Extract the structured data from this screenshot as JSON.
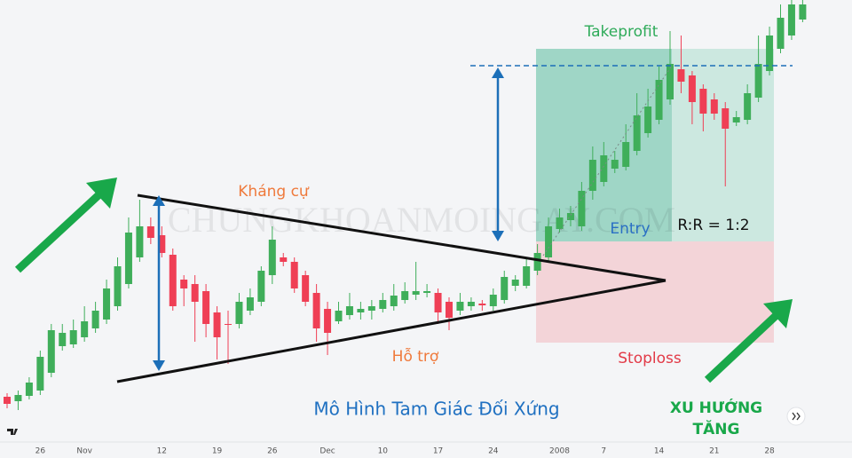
{
  "chart_data": {
    "type": "candlestick",
    "title": "Mô Hình Tam Giác Đối Xứng",
    "categories": [
      null,
      null,
      null,
      "26",
      null,
      null,
      null,
      "Nov",
      null,
      null,
      null,
      null,
      null,
      null,
      "12",
      null,
      null,
      null,
      null,
      "19",
      null,
      null,
      null,
      null,
      "26",
      null,
      null,
      null,
      null,
      "Dec",
      null,
      null,
      null,
      null,
      "10",
      null,
      null,
      null,
      null,
      "17",
      null,
      null,
      null,
      null,
      "24",
      null,
      null,
      null,
      null,
      null,
      "2008",
      null,
      null,
      null,
      "7",
      null,
      null,
      null,
      null,
      "14",
      null,
      null,
      null,
      null,
      "21",
      null,
      null,
      null,
      null,
      "28",
      null,
      null,
      null
    ],
    "open": [
      53,
      48,
      54,
      60,
      80,
      110,
      112,
      120,
      130,
      140,
      155,
      180,
      210,
      245,
      235,
      213,
      185,
      180,
      172,
      148,
      135,
      135,
      150,
      160,
      190,
      210,
      205,
      190,
      170,
      152,
      138,
      145,
      148,
      150,
      152,
      155,
      162,
      168,
      170,
      170,
      160,
      150,
      155,
      158,
      155,
      162,
      178,
      178,
      195,
      210,
      242,
      252,
      245,
      285,
      295,
      310,
      312,
      330,
      350,
      365,
      388,
      422,
      415,
      400,
      388,
      378,
      362,
      365,
      390,
      420,
      445,
      460,
      478
    ],
    "high": [
      57,
      60,
      75,
      105,
      135,
      135,
      140,
      155,
      160,
      185,
      210,
      255,
      275,
      255,
      245,
      220,
      190,
      190,
      180,
      155,
      150,
      170,
      175,
      200,
      245,
      215,
      210,
      195,
      180,
      160,
      160,
      170,
      160,
      162,
      170,
      180,
      182,
      205,
      180,
      175,
      165,
      170,
      165,
      162,
      175,
      195,
      190,
      210,
      225,
      255,
      265,
      268,
      295,
      335,
      340,
      330,
      360,
      395,
      400,
      425,
      465,
      460,
      420,
      405,
      395,
      385,
      375,
      405,
      460,
      470,
      495,
      500,
      500
    ],
    "low": [
      40,
      38,
      50,
      55,
      75,
      105,
      108,
      115,
      125,
      135,
      150,
      175,
      205,
      225,
      210,
      150,
      155,
      115,
      120,
      95,
      90,
      130,
      145,
      155,
      180,
      200,
      170,
      155,
      115,
      100,
      135,
      140,
      140,
      140,
      148,
      150,
      158,
      162,
      165,
      135,
      128,
      145,
      150,
      150,
      150,
      158,
      172,
      175,
      190,
      205,
      238,
      245,
      240,
      275,
      290,
      305,
      308,
      325,
      345,
      360,
      382,
      395,
      360,
      352,
      365,
      290,
      358,
      360,
      385,
      415,
      440,
      455,
      475
    ],
    "close": [
      45,
      55,
      69,
      98,
      128,
      125,
      128,
      138,
      150,
      175,
      200,
      238,
      245,
      232,
      215,
      155,
      175,
      160,
      135,
      120,
      134,
      160,
      165,
      195,
      230,
      205,
      175,
      160,
      130,
      125,
      150,
      155,
      152,
      155,
      162,
      167,
      172,
      172,
      172,
      148,
      142,
      160,
      160,
      156,
      168,
      188,
      185,
      200,
      215,
      245,
      255,
      260,
      285,
      320,
      325,
      320,
      340,
      370,
      380,
      410,
      428,
      408,
      385,
      372,
      372,
      355,
      368,
      395,
      428,
      460,
      480,
      495,
      495
    ],
    "up_color": "#3fae5a",
    "down_color": "#ef3f55",
    "ylim": [
      0,
      500
    ],
    "annotations": {
      "resistance": "Kháng cự",
      "support": "Hỗ trợ",
      "takeprofit": "Takeprofit",
      "entry": "Entry",
      "risk_reward": "R:R = 1:2",
      "stoploss": "Stoploss",
      "trend": [
        "XU HƯỚNG",
        "TĂNG"
      ]
    },
    "watermark": "CHUNGKHOANMOINGAY.COM"
  }
}
